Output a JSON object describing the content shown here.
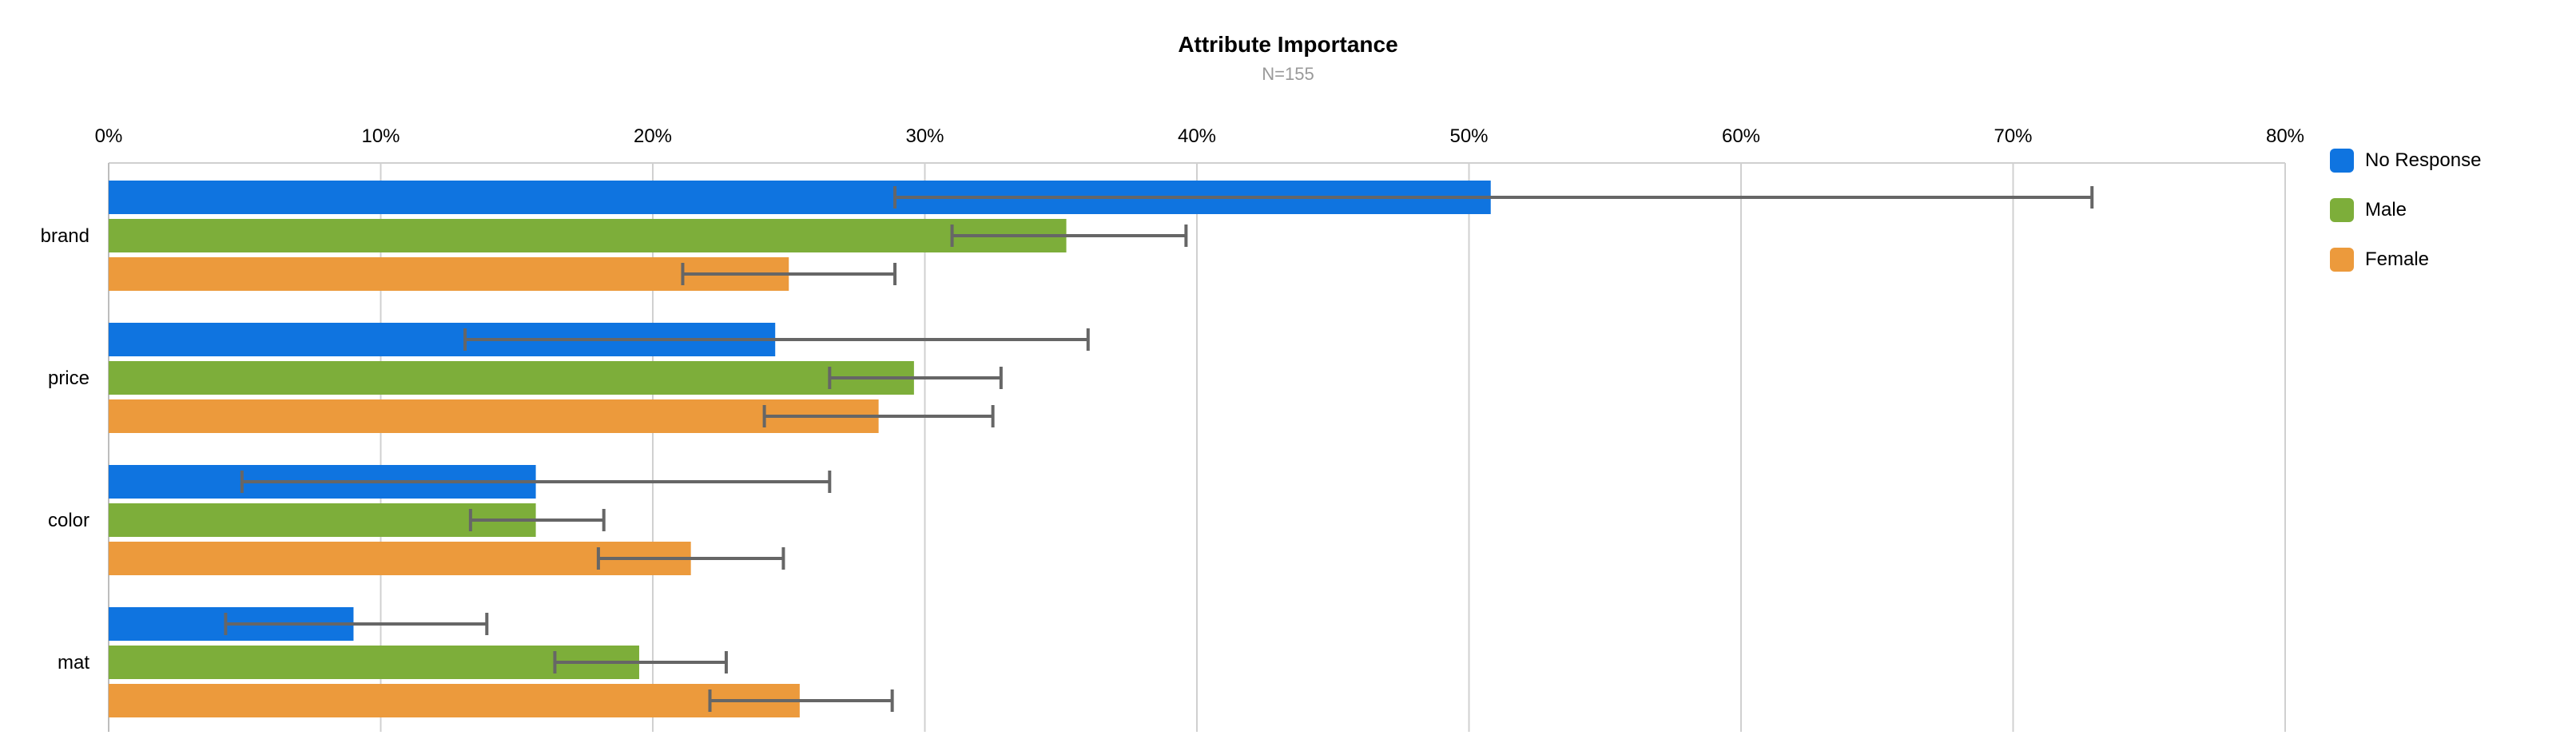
{
  "chart_data": {
    "type": "bar",
    "orientation": "horizontal",
    "title": "Attribute Importance",
    "subtitle": "N=155",
    "categories": [
      "brand",
      "price",
      "color",
      "mat"
    ],
    "x_ticks": [
      "0%",
      "10%",
      "20%",
      "30%",
      "40%",
      "50%",
      "60%",
      "70%",
      "80%"
    ],
    "xlim": [
      0,
      80
    ],
    "grid": true,
    "legend_position": "right",
    "series": [
      {
        "name": "No Response",
        "color": "#0F74E0",
        "values": [
          50.8,
          24.5,
          15.7,
          9.0
        ],
        "error_low": [
          28.9,
          13.1,
          4.9,
          4.3
        ],
        "error_high": [
          72.9,
          36.0,
          26.5,
          13.9
        ]
      },
      {
        "name": "Male",
        "color": "#7DAE3A",
        "values": [
          35.2,
          29.6,
          15.7,
          19.5
        ],
        "error_low": [
          31.0,
          26.5,
          13.3,
          16.4
        ],
        "error_high": [
          39.6,
          32.8,
          18.2,
          22.7
        ]
      },
      {
        "name": "Female",
        "color": "#EC9A3C",
        "values": [
          25.0,
          28.3,
          21.4,
          25.4
        ],
        "error_low": [
          21.1,
          24.1,
          18.0,
          22.1
        ],
        "error_high": [
          28.9,
          32.5,
          24.8,
          28.8
        ]
      }
    ],
    "error_bar_color": "#666666"
  }
}
